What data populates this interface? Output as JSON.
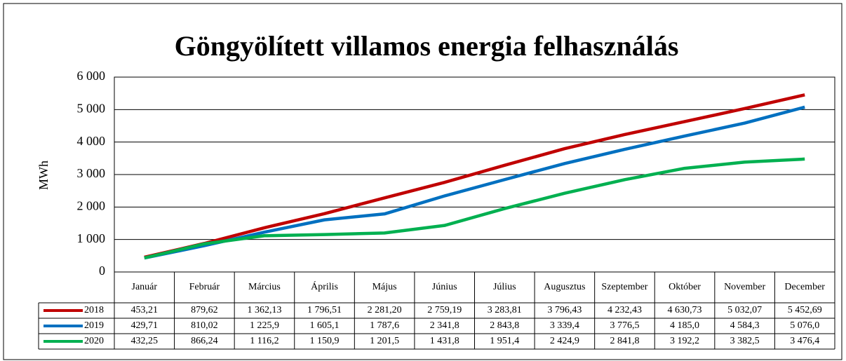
{
  "chart_data": {
    "type": "line",
    "title": "Göngyölített villamos energia felhasználás",
    "y_label": "MWh",
    "categories": [
      "Január",
      "Február",
      "Március",
      "Április",
      "Május",
      "Június",
      "Július",
      "Augusztus",
      "Szeptember",
      "Október",
      "November",
      "December"
    ],
    "series": [
      {
        "name": "2018",
        "color": "#c00000",
        "values": [
          453.21,
          879.62,
          1362.13,
          1796.51,
          2281.2,
          2759.19,
          3283.81,
          3796.43,
          4232.43,
          4630.73,
          5032.07,
          5452.69
        ],
        "value_labels": [
          "453,21",
          "879,62",
          "1 362,13",
          "1 796,51",
          "2 281,20",
          "2 759,19",
          "3 283,81",
          "3 796,43",
          "4 232,43",
          "4 630,73",
          "5 032,07",
          "5 452,69"
        ]
      },
      {
        "name": "2019",
        "color": "#0070c0",
        "values": [
          429.71,
          810.02,
          1225.9,
          1605.1,
          1787.6,
          2341.8,
          2843.8,
          3339.4,
          3776.5,
          4185.0,
          4584.3,
          5076.0
        ],
        "value_labels": [
          "429,71",
          "810,02",
          "1 225,9",
          "1 605,1",
          "1 787,6",
          "2 341,8",
          "2 843,8",
          "3 339,4",
          "3 776,5",
          "4 185,0",
          "4 584,3",
          "5 076,0"
        ]
      },
      {
        "name": "2020",
        "color": "#00b050",
        "values": [
          432.25,
          866.24,
          1116.2,
          1150.9,
          1201.5,
          1431.8,
          1951.4,
          2424.9,
          2841.8,
          3192.2,
          3382.5,
          3476.4
        ],
        "value_labels": [
          "432,25",
          "866,24",
          "1 116,2",
          "1 150,9",
          "1 201,5",
          "1 431,8",
          "1 951,4",
          "2 424,9",
          "2 841,8",
          "3 192,2",
          "3 382,5",
          "3 476,4"
        ]
      }
    ],
    "ylim": [
      0,
      6000
    ],
    "yticks": [
      0,
      {
        "value": 1000,
        "label": "1 000"
      },
      {
        "value": 2000,
        "label": "2 000"
      },
      {
        "value": 3000,
        "label": "3 000"
      },
      {
        "value": 4000,
        "label": "4 000"
      },
      {
        "value": 5000,
        "label": "5 000"
      },
      {
        "value": 6000,
        "label": "6 000"
      }
    ],
    "grid": true
  }
}
